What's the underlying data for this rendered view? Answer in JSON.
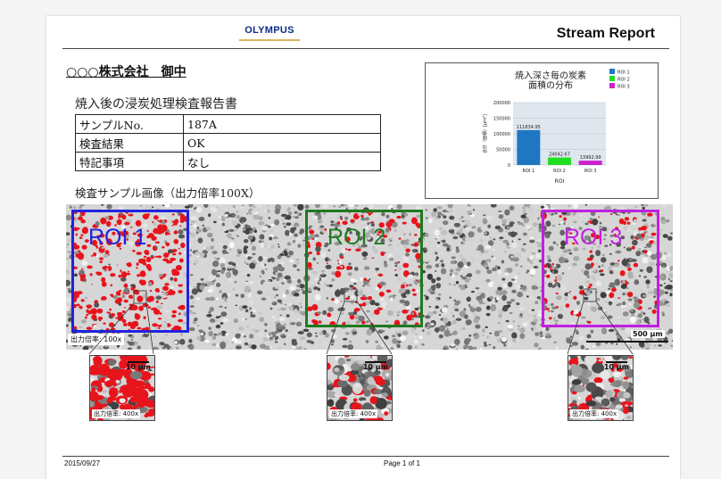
{
  "header": {
    "logo_text": "OLYMPUS",
    "report_title": "Stream Report"
  },
  "company": "○○○株式会社　御中",
  "report_heading": "焼入後の浸炭処理検査報告書",
  "info_table": [
    {
      "key": "サンプルNo.",
      "value": "187A"
    },
    {
      "key": "検査結果",
      "value": "OK"
    },
    {
      "key": "特記事項",
      "value": "なし"
    }
  ],
  "sample_image_label": "検査サンプル画像（出力倍率100X）",
  "image": {
    "overview_magnification": "出力倍率: 100x",
    "scale_bar": "500 μm",
    "rois": [
      {
        "label": "ROI 1",
        "color": "#2222dd"
      },
      {
        "label": "ROI 2",
        "color": "#1f7a1f"
      },
      {
        "label": "ROI 3",
        "color": "#c020e0"
      }
    ],
    "zooms": [
      {
        "magnification": "出力倍率: 400x",
        "scale": "10 μm"
      },
      {
        "magnification": "出力倍率: 400x",
        "scale": "10 μm"
      },
      {
        "magnification": "出力倍率: 400x",
        "scale": "10 μm"
      }
    ]
  },
  "chart_data": {
    "type": "bar",
    "title": "焼入深さ毎の炭素\n面積の分布",
    "categories": [
      "ROI 1",
      "ROI 2",
      "ROI 3"
    ],
    "values": [
      111834.95,
      24042.67,
      13992.99
    ],
    "value_labels": [
      "111834.95",
      "24042.67",
      "13992.99"
    ],
    "colors": [
      "#1f77c4",
      "#22dd22",
      "#cc22cc"
    ],
    "legend": [
      "ROI 1",
      "ROI 2",
      "ROI 3"
    ],
    "legend_position": "top-right",
    "ylabel": "合計（面積）[μm²]",
    "xlabel": "ROI",
    "ylim": [
      0,
      200000
    ],
    "yticks": [
      "0",
      "50000",
      "100000",
      "150000",
      "200000"
    ],
    "grid": true
  },
  "footer": {
    "date": "2015/09/27",
    "page": "Page 1 of 1"
  }
}
